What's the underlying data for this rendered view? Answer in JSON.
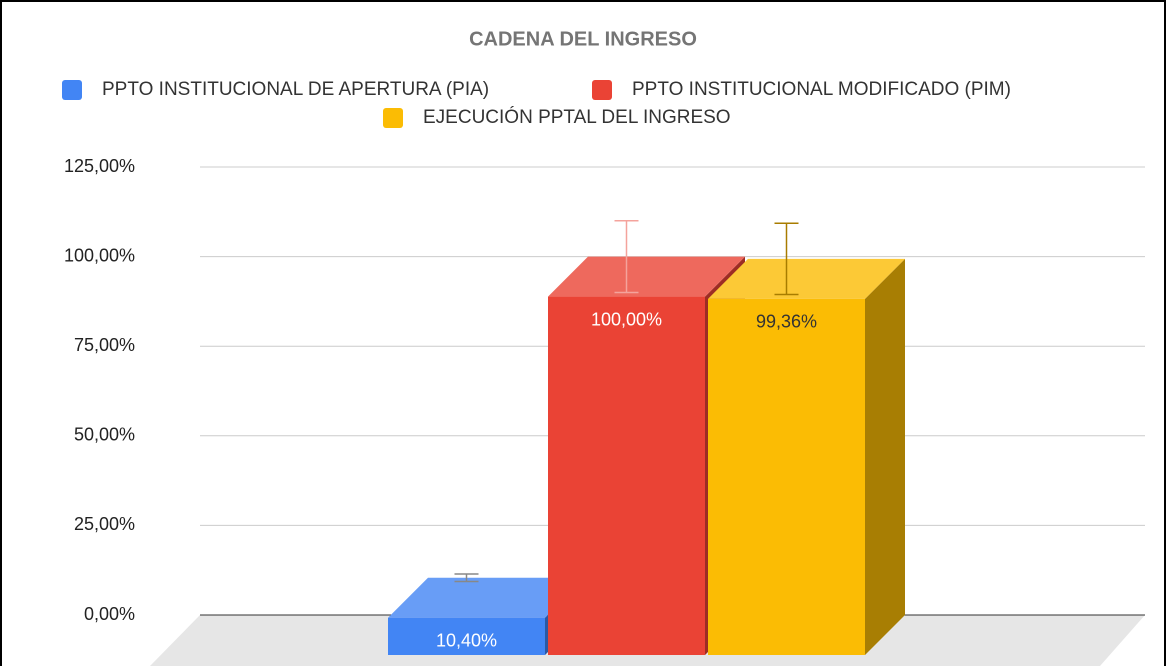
{
  "chart_data": {
    "type": "bar3d",
    "title": "CADENA DEL INGRESO",
    "series": [
      {
        "name": "PPTO INSTITUCIONAL DE APERTURA (PIA)",
        "color": "#4285f4",
        "values": [
          10.4
        ],
        "value_labels": [
          "10,40%"
        ],
        "errors": [
          1.04
        ]
      },
      {
        "name": "PPTO INSTITUCIONAL MODIFICADO (PIM)",
        "color": "#ea4335",
        "values": [
          100
        ],
        "value_labels": [
          "100,00%"
        ],
        "errors": [
          10
        ]
      },
      {
        "name": "EJECUCIÓN PPTAL DEL INGRESO",
        "color": "#fbbc04",
        "values": [
          99.36
        ],
        "value_labels": [
          "99,36%"
        ],
        "errors": [
          9.94
        ]
      }
    ],
    "ylim": [
      0,
      125
    ],
    "yticks": [
      {
        "value": 0,
        "label": "0,00%"
      },
      {
        "value": 25,
        "label": "25,00%"
      },
      {
        "value": 50,
        "label": "50,00%"
      },
      {
        "value": 75,
        "label": "75,00%"
      },
      {
        "value": 100,
        "label": "100,00%"
      },
      {
        "value": 125,
        "label": "125,00%"
      }
    ],
    "grid": true,
    "legend": "top"
  }
}
